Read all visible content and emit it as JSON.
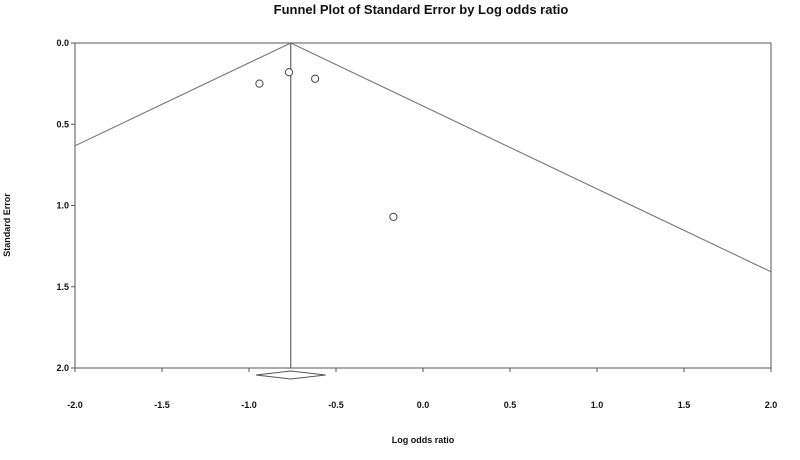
{
  "chart_data": {
    "type": "scatter",
    "title": "Funnel Plot of Standard Error by Log odds ratio",
    "xlabel": "Log odds ratio",
    "ylabel": "Standard Error",
    "xlim": [
      -2.0,
      2.0
    ],
    "ylim": [
      0.0,
      2.0
    ],
    "y_inverted": true,
    "x_ticks": [
      "-2.0",
      "-1.5",
      "-1.0",
      "-0.5",
      "0.0",
      "0.5",
      "1.0",
      "1.5",
      "2.0"
    ],
    "y_ticks": [
      "0.0",
      "0.5",
      "1.0",
      "1.5",
      "2.0"
    ],
    "grid": false,
    "points": [
      {
        "x": -0.94,
        "y": 0.25
      },
      {
        "x": -0.77,
        "y": 0.18
      },
      {
        "x": -0.62,
        "y": 0.22
      },
      {
        "x": -0.17,
        "y": 1.07
      }
    ],
    "pooled_estimate": -0.76,
    "funnel_z": 1.96,
    "summary_diamond": {
      "center": -0.76,
      "lower": -0.96,
      "upper": -0.56
    }
  }
}
